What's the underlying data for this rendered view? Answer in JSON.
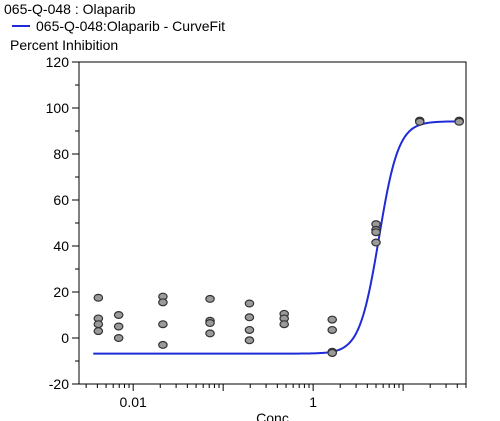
{
  "chart_data": {
    "type": "scatter",
    "title": "065-Q-048  : Olaparib",
    "ylabel": "Percent Inhibition",
    "xlabel": "Conc",
    "x_scale": "log",
    "xlim": [
      0.0025,
      50
    ],
    "ylim": [
      -20,
      120
    ],
    "yticks": [
      -20,
      0,
      20,
      40,
      60,
      80,
      100,
      120
    ],
    "xticks": [
      0.01,
      1
    ],
    "xtick_labels": [
      "0.01",
      "1"
    ],
    "grid": false,
    "legend_position": "top-left",
    "series": [
      {
        "name": "065-Q-048  : Olaparib",
        "kind": "points",
        "color": "#9a9a9a",
        "points": [
          [
            0.0041,
            17.5
          ],
          [
            0.0041,
            8.5
          ],
          [
            0.0041,
            6.0
          ],
          [
            0.0041,
            3.0
          ],
          [
            0.0069,
            10.0
          ],
          [
            0.0069,
            5.0
          ],
          [
            0.0069,
            0.0
          ],
          [
            0.0214,
            18.0
          ],
          [
            0.0214,
            15.5
          ],
          [
            0.0214,
            6.0
          ],
          [
            0.0214,
            -3.0
          ],
          [
            0.0715,
            17.0
          ],
          [
            0.0715,
            7.5
          ],
          [
            0.0715,
            6.5
          ],
          [
            0.0715,
            2.0
          ],
          [
            0.196,
            15.0
          ],
          [
            0.196,
            9.0
          ],
          [
            0.196,
            3.5
          ],
          [
            0.196,
            -1.0
          ],
          [
            0.477,
            10.5
          ],
          [
            0.477,
            8.5
          ],
          [
            0.477,
            6.0
          ],
          [
            1.63,
            8.0
          ],
          [
            1.63,
            3.5
          ],
          [
            1.63,
            -6.0
          ],
          [
            1.63,
            -6.5
          ],
          [
            5.0,
            49.5
          ],
          [
            5.0,
            47.0
          ],
          [
            5.0,
            46.0
          ],
          [
            5.0,
            41.5
          ],
          [
            15.3,
            94.5
          ],
          [
            15.3,
            94.0
          ],
          [
            42.0,
            94.5
          ],
          [
            42.0,
            94.0
          ]
        ]
      },
      {
        "name": "065-Q-048:Olaparib - CurveFit",
        "kind": "curve",
        "color": "#1f2bd6",
        "bottom": -6.8,
        "top": 94.2,
        "ec50": 5.4,
        "hill": 4.0,
        "x_range": [
          0.0036,
          42.0
        ]
      }
    ]
  }
}
